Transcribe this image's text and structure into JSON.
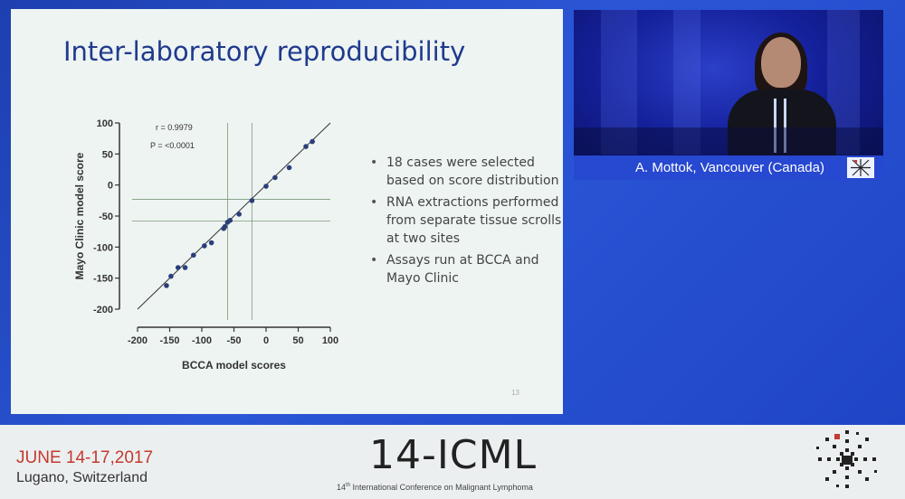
{
  "slide": {
    "title": "Inter-laboratory reproducibility",
    "bullets": [
      "18 cases were selected based on score distribution",
      "RNA extractions performed from separate tissue scrolls at two sites",
      "Assays run at BCCA and Mayo Clinic"
    ],
    "page_number": "13"
  },
  "chart_data": {
    "type": "scatter",
    "xlabel": "BCCA model scores",
    "ylabel": "Mayo Clinic model score",
    "xlim": [
      -200,
      100
    ],
    "ylim": [
      -200,
      100
    ],
    "xticks": [
      -200,
      -150,
      -100,
      -50,
      0,
      50,
      100
    ],
    "yticks": [
      100,
      50,
      0,
      -50,
      -100,
      -150,
      -200
    ],
    "annotations": {
      "r": "r = 0.9979",
      "p": "P = <0.0001"
    },
    "points": [
      {
        "x": -155,
        "y": -162
      },
      {
        "x": -148,
        "y": -147
      },
      {
        "x": -137,
        "y": -133
      },
      {
        "x": -126,
        "y": -133
      },
      {
        "x": -113,
        "y": -113
      },
      {
        "x": -96,
        "y": -98
      },
      {
        "x": -85,
        "y": -93
      },
      {
        "x": -66,
        "y": -70
      },
      {
        "x": -64,
        "y": -67
      },
      {
        "x": -60,
        "y": -60
      },
      {
        "x": -56,
        "y": -57
      },
      {
        "x": -42,
        "y": -47
      },
      {
        "x": -22,
        "y": -25
      },
      {
        "x": 0,
        "y": -2
      },
      {
        "x": 14,
        "y": 12
      },
      {
        "x": 36,
        "y": 28
      },
      {
        "x": 62,
        "y": 62
      },
      {
        "x": 72,
        "y": 70
      }
    ],
    "regression_line": {
      "x": [
        -200,
        100
      ],
      "y": [
        -200,
        100
      ]
    },
    "reference_lines": {
      "vertical": [
        -60,
        -22
      ],
      "horizontal": [
        -23,
        -58
      ]
    },
    "grid": false,
    "colors": {
      "points": "#2a3f7a",
      "line": "#333333",
      "reference": "#7a9a7a"
    }
  },
  "speaker": {
    "caption": "A. Mottok, Vancouver (Canada)"
  },
  "footer": {
    "date": "JUNE 14-17,2017",
    "location": "Lugano, Switzerland",
    "conference": "14-ICML",
    "subtitle_sup": "th",
    "subtitle_num": "14",
    "subtitle_rest": "International Conference on Malignant Lymphoma"
  }
}
